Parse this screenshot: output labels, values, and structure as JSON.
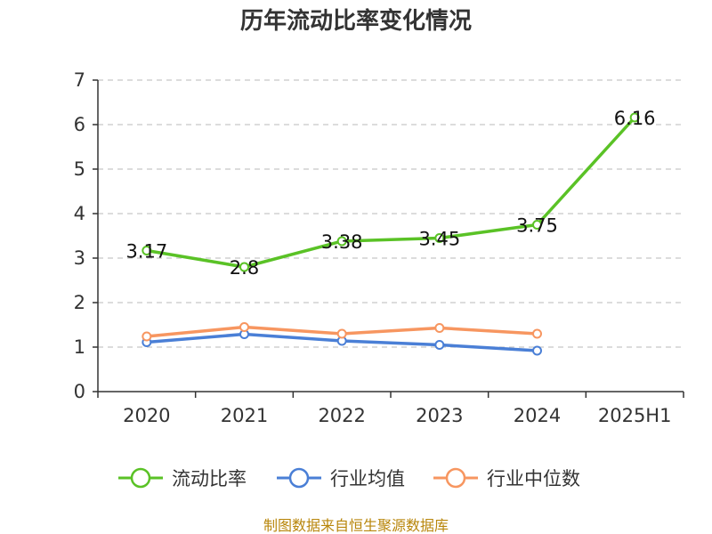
{
  "chart_data": {
    "type": "line",
    "title": "历年流动比率变化情况",
    "categories": [
      "2020",
      "2021",
      "2022",
      "2023",
      "2024",
      "2025H1"
    ],
    "ylim": [
      0,
      7
    ],
    "yticks": [
      "0",
      "1",
      "2",
      "3",
      "4",
      "5",
      "6",
      "7"
    ],
    "grid": true,
    "legend_position": "bottom",
    "series": [
      {
        "name": "流动比率",
        "color": "#5ac226",
        "values": [
          3.17,
          2.8,
          3.38,
          3.45,
          3.75,
          6.16
        ],
        "labels": [
          "3.17",
          "2.8",
          "3.38",
          "3.45",
          "3.75",
          "6.16"
        ]
      },
      {
        "name": "行业均值",
        "color": "#4a7fd6",
        "values": [
          1.11,
          1.29,
          1.14,
          1.05,
          0.92,
          null
        ]
      },
      {
        "name": "行业中位数",
        "color": "#f79660",
        "values": [
          1.24,
          1.45,
          1.3,
          1.43,
          1.3,
          null
        ]
      }
    ],
    "source": "制图数据来自恒生聚源数据库"
  }
}
